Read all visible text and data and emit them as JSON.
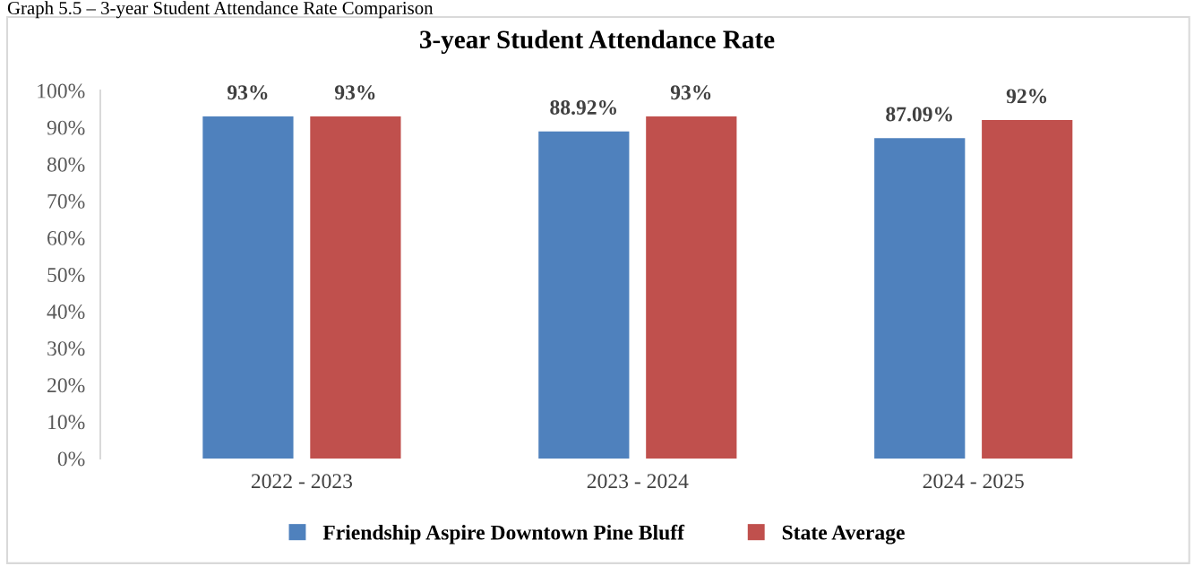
{
  "chart_data": {
    "type": "bar",
    "title": "3-year Student Attendance Rate",
    "annotations": [
      "Graph 5.5 – 3-year Student Attendance Rate Comparison"
    ],
    "categories": [
      "2022 - 2023",
      "2023 - 2024",
      "2024 - 2025"
    ],
    "series": [
      {
        "name": "Friendship Aspire Downtown Pine Bluff",
        "color": "#4f81bd",
        "values": [
          93,
          88.92,
          87.09
        ],
        "value_labels": [
          "93%",
          "88.92%",
          "87.09%"
        ]
      },
      {
        "name": "State Average",
        "color": "#c0504d",
        "values": [
          93,
          93,
          92
        ],
        "value_labels": [
          "93%",
          "93%",
          "92%"
        ]
      }
    ],
    "ylim": [
      0,
      100
    ],
    "yticks": [
      {
        "value": 0,
        "label": "0%"
      },
      {
        "value": 10,
        "label": "10%"
      },
      {
        "value": 20,
        "label": "20%"
      },
      {
        "value": 30,
        "label": "30%"
      },
      {
        "value": 40,
        "label": "40%"
      },
      {
        "value": 50,
        "label": "50%"
      },
      {
        "value": 60,
        "label": "60%"
      },
      {
        "value": 70,
        "label": "70%"
      },
      {
        "value": 80,
        "label": "80%"
      },
      {
        "value": 90,
        "label": "90%"
      },
      {
        "value": 100,
        "label": "100%"
      }
    ],
    "grid": false,
    "legend": "bottom"
  }
}
